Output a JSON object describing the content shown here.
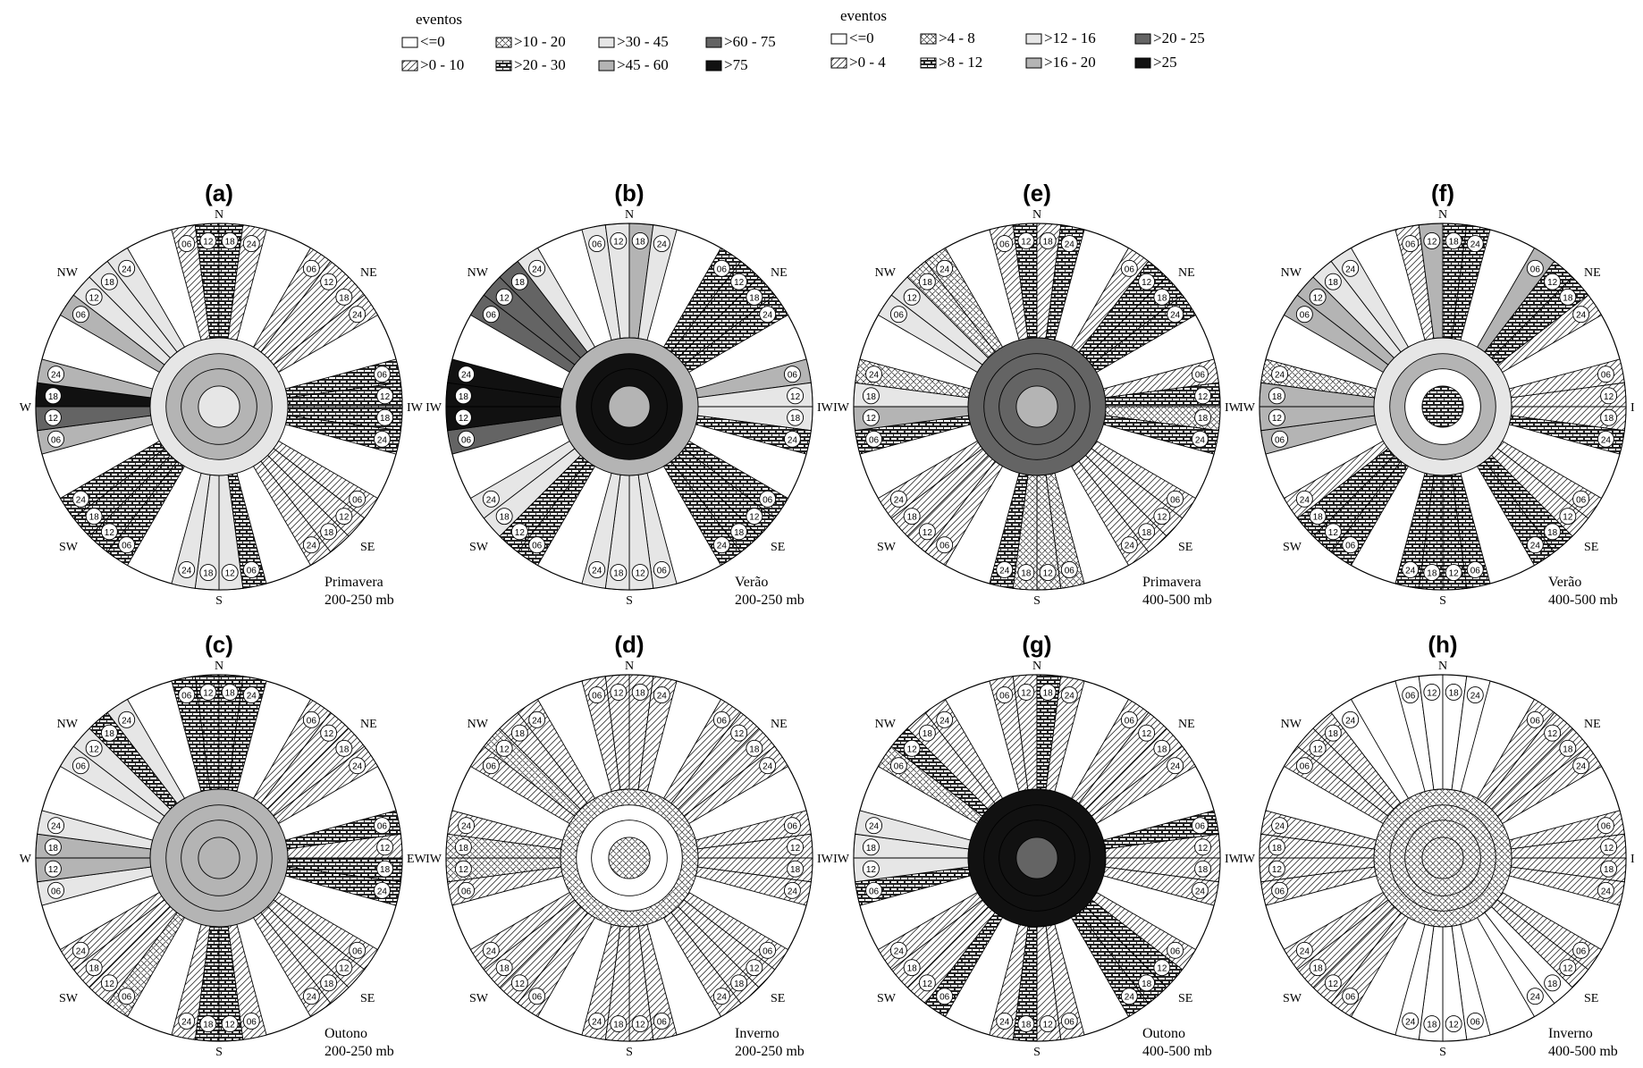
{
  "legends": [
    {
      "title": "eventos",
      "items": [
        {
          "label": "<=0",
          "pattern": "white"
        },
        {
          "label": ">0 - 10",
          "pattern": "diag"
        },
        {
          "label": ">10 - 20",
          "pattern": "cross"
        },
        {
          "label": ">20 - 30",
          "pattern": "brick"
        },
        {
          "label": ">30 - 45",
          "pattern": "g1"
        },
        {
          "label": ">45 - 60",
          "pattern": "g2"
        },
        {
          "label": ">60 - 75",
          "pattern": "g3"
        },
        {
          "label": ">75",
          "pattern": "black"
        }
      ]
    },
    {
      "title": "eventos",
      "items": [
        {
          "label": "<=0",
          "pattern": "white"
        },
        {
          "label": ">0 - 4",
          "pattern": "diag"
        },
        {
          "label": ">4 - 8",
          "pattern": "cross"
        },
        {
          "label": ">8 - 12",
          "pattern": "brick"
        },
        {
          "label": ">12 - 16",
          "pattern": "g1"
        },
        {
          "label": ">16 - 20",
          "pattern": "g2"
        },
        {
          "label": ">20 - 25",
          "pattern": "g3"
        },
        {
          "label": ">25",
          "pattern": "black"
        }
      ]
    }
  ],
  "hour_labels": [
    "06",
    "12",
    "18",
    "24"
  ],
  "direction_labels": [
    "N",
    "NE",
    "IW",
    "SE",
    "S",
    "SW",
    "W",
    "NW"
  ],
  "colors": {
    "g1": "#e6e6e6",
    "g2": "#b4b4b4",
    "g3": "#646464",
    "black": "#111111"
  },
  "panels": [
    {
      "letter": "(a)",
      "season": "Primavera",
      "level": "200-250 mb",
      "east_label": "IW",
      "west_label": "W",
      "center": [
        "g1",
        "g2",
        "g2",
        "g1"
      ],
      "sectors": {
        "N": [
          "diag",
          "brick",
          "brick",
          "diag"
        ],
        "NE": [
          "diag",
          "diag",
          "diag",
          "diag"
        ],
        "E": [
          "brick",
          "brick",
          "brick",
          "brick"
        ],
        "SE": [
          "diag",
          "diag",
          "diag",
          "diag"
        ],
        "S": [
          "brick",
          "g1",
          "g1",
          "g1"
        ],
        "SW": [
          "brick",
          "brick",
          "brick",
          "brick"
        ],
        "W": [
          "g2",
          "g3",
          "black",
          "g2"
        ],
        "NW": [
          "g2",
          "g1",
          "g1",
          "g1"
        ]
      }
    },
    {
      "letter": "(b)",
      "season": "Verão",
      "level": "200-250 mb",
      "east_label": "IW",
      "west_label": "IW",
      "center": [
        "g2",
        "black",
        "black",
        "g2"
      ],
      "sectors": {
        "N": [
          "g1",
          "g1",
          "g2",
          "g1"
        ],
        "NE": [
          "brick",
          "brick",
          "brick",
          "brick"
        ],
        "E": [
          "g2",
          "g1",
          "g1",
          "brick"
        ],
        "SE": [
          "brick",
          "brick",
          "brick",
          "brick"
        ],
        "S": [
          "g1",
          "g1",
          "g1",
          "g1"
        ],
        "SW": [
          "brick",
          "brick",
          "g1",
          "g1"
        ],
        "W": [
          "g3",
          "black",
          "black",
          "black"
        ],
        "NW": [
          "g3",
          "g3",
          "g3",
          "g1"
        ]
      }
    },
    {
      "letter": "(e)",
      "season": "Primavera",
      "level": "400-500 mb",
      "east_label": "IW",
      "west_label": "IW",
      "center": [
        "g3",
        "g3",
        "g3",
        "g2"
      ],
      "sectors": {
        "N": [
          "diag",
          "brick",
          "diag",
          "brick"
        ],
        "NE": [
          "diag",
          "brick",
          "brick",
          "brick"
        ],
        "E": [
          "diag",
          "brick",
          "cross",
          "brick"
        ],
        "SE": [
          "diag",
          "diag",
          "diag",
          "diag"
        ],
        "S": [
          "cross",
          "cross",
          "cross",
          "brick"
        ],
        "SW": [
          "diag",
          "diag",
          "diag",
          "diag"
        ],
        "W": [
          "brick",
          "g2",
          "g1",
          "cross"
        ],
        "NW": [
          "g1",
          "g1",
          "cross",
          "cross"
        ]
      }
    },
    {
      "letter": "(f)",
      "season": "Verão",
      "level": "400-500 mb",
      "east_label": "I",
      "west_label": "IW",
      "center": [
        "g1",
        "g2",
        "white",
        "brick"
      ],
      "sectors": {
        "N": [
          "diag",
          "g2",
          "brick",
          "brick"
        ],
        "NE": [
          "g2",
          "brick",
          "brick",
          "diag"
        ],
        "E": [
          "diag",
          "diag",
          "diag",
          "brick"
        ],
        "SE": [
          "diag",
          "diag",
          "brick",
          "brick"
        ],
        "S": [
          "brick",
          "brick",
          "brick",
          "brick"
        ],
        "SW": [
          "brick",
          "brick",
          "brick",
          "diag"
        ],
        "W": [
          "g2",
          "g2",
          "g2",
          "cross"
        ],
        "NW": [
          "g2",
          "g2",
          "g1",
          "g1"
        ]
      }
    },
    {
      "letter": "(c)",
      "season": "Outono",
      "level": "200-250 mb",
      "east_label": "EW",
      "west_label": "W",
      "center": [
        "g2",
        "g2",
        "g2",
        "g2"
      ],
      "sectors": {
        "N": [
          "brick",
          "brick",
          "brick",
          "brick"
        ],
        "NE": [
          "diag",
          "diag",
          "diag",
          "diag"
        ],
        "E": [
          "brick",
          "diag",
          "brick",
          "brick"
        ],
        "SE": [
          "diag",
          "diag",
          "diag",
          "diag"
        ],
        "S": [
          "diag",
          "brick",
          "brick",
          "diag"
        ],
        "SW": [
          "cross",
          "diag",
          "diag",
          "diag"
        ],
        "W": [
          "g1",
          "g2",
          "g2",
          "g1"
        ],
        "NW": [
          "g1",
          "g1",
          "brick",
          "g1"
        ]
      }
    },
    {
      "letter": "(d)",
      "season": "Inverno",
      "level": "200-250 mb",
      "east_label": "IW",
      "west_label": "IW",
      "center": [
        "cross",
        "white",
        "white",
        "cross"
      ],
      "sectors": {
        "N": [
          "diag",
          "diag",
          "diag",
          "diag"
        ],
        "NE": [
          "diag",
          "diag",
          "diag",
          "diag"
        ],
        "E": [
          "diag",
          "diag",
          "diag",
          "diag"
        ],
        "SE": [
          "diag",
          "diag",
          "diag",
          "diag"
        ],
        "S": [
          "diag",
          "diag",
          "diag",
          "diag"
        ],
        "SW": [
          "diag",
          "diag",
          "diag",
          "diag"
        ],
        "W": [
          "diag",
          "cross",
          "cross",
          "diag"
        ],
        "NW": [
          "diag",
          "cross",
          "diag",
          "diag"
        ]
      }
    },
    {
      "letter": "(g)",
      "season": "Outono",
      "level": "400-500 mb",
      "east_label": "IW",
      "west_label": "IW",
      "center": [
        "black",
        "black",
        "black",
        "g3"
      ],
      "sectors": {
        "N": [
          "diag",
          "diag",
          "brick",
          "diag"
        ],
        "NE": [
          "diag",
          "diag",
          "diag",
          "diag"
        ],
        "E": [
          "brick",
          "diag",
          "diag",
          "diag"
        ],
        "SE": [
          "diag",
          "brick",
          "brick",
          "brick"
        ],
        "S": [
          "diag",
          "diag",
          "brick",
          "diag"
        ],
        "SW": [
          "brick",
          "diag",
          "diag",
          "diag"
        ],
        "W": [
          "brick",
          "g1",
          "g1",
          "g1"
        ],
        "NW": [
          "cross",
          "brick",
          "diag",
          "diag"
        ]
      }
    },
    {
      "letter": "(h)",
      "season": "Inverno",
      "level": "400-500 mb",
      "east_label": "I",
      "west_label": "IW",
      "center": [
        "cross",
        "cross",
        "cross",
        "cross"
      ],
      "sectors": {
        "N": [
          "white",
          "white",
          "white",
          "white"
        ],
        "NE": [
          "diag",
          "diag",
          "diag",
          "diag"
        ],
        "E": [
          "diag",
          "diag",
          "diag",
          "diag"
        ],
        "SE": [
          "diag",
          "diag",
          "white",
          "white"
        ],
        "S": [
          "white",
          "white",
          "white",
          "white"
        ],
        "SW": [
          "diag",
          "diag",
          "diag",
          "diag"
        ],
        "W": [
          "diag",
          "diag",
          "diag",
          "diag"
        ],
        "NW": [
          "diag",
          "diag",
          "diag",
          "white"
        ]
      }
    }
  ]
}
